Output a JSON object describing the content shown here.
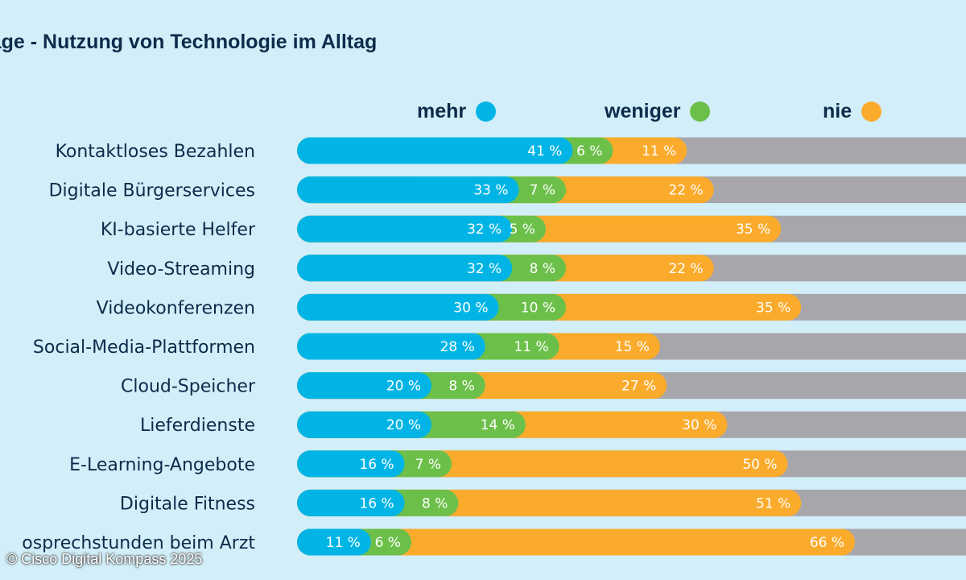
{
  "chart_data": {
    "type": "bar",
    "orientation": "horizontal",
    "stacked": true,
    "title": "rage - Nutzung von Technologie im Alltag",
    "categories": [
      "Kontaktloses Bezahlen",
      "Digitale Bürgerservices",
      "KI-basierte Helfer",
      "Video-Streaming",
      "Videokonferenzen",
      "Social-Media-Plattformen",
      "Cloud-Speicher",
      "Lieferdienste",
      "E-Learning-Angebote",
      "Digitale Fitness",
      "osprechstunden beim Arzt"
    ],
    "series": [
      {
        "name": "mehr",
        "color": "#00b5e6",
        "values": [
          41,
          33,
          32,
          32,
          30,
          28,
          20,
          20,
          16,
          16,
          11
        ]
      },
      {
        "name": "weniger",
        "color": "#6cc04a",
        "values": [
          6,
          7,
          5,
          8,
          10,
          11,
          8,
          14,
          7,
          8,
          6
        ]
      },
      {
        "name": "nie",
        "color": "#fbab2c",
        "values": [
          11,
          22,
          35,
          22,
          35,
          15,
          27,
          30,
          50,
          51,
          66
        ]
      }
    ],
    "value_labels": {
      "mehr": [
        "41 %",
        "33 %",
        "32 %",
        "32 %",
        "30 %",
        "28 %",
        "20 %",
        "20 %",
        "16 %",
        "16 %",
        "11 %"
      ],
      "weniger": [
        "6 %",
        "7 %",
        "5 %",
        "8 %",
        "10 %",
        "11 %",
        "8 %",
        "14 %",
        "7 %",
        "8 %",
        "6 %"
      ],
      "nie": [
        "11 %",
        "22 %",
        "35 %",
        "22 %",
        "35 %",
        "15 %",
        "27 %",
        "30 %",
        "50 %",
        "51 %",
        "66 %"
      ]
    },
    "remainder_color": "#a7a6ab",
    "legend_position": "top",
    "source": "© Cisco Digital Kompass 2025"
  }
}
